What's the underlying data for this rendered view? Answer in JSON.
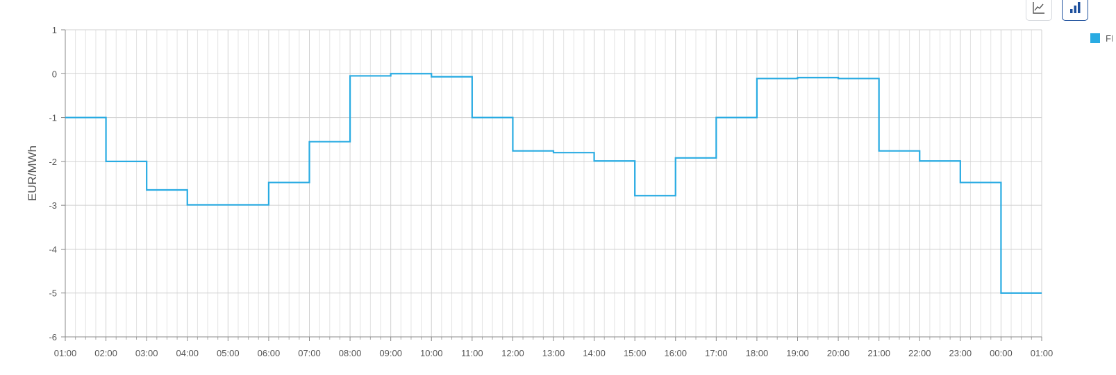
{
  "toolbar": {
    "line_icon": "line-chart-icon",
    "bar_icon": "bar-chart-icon",
    "active_color": "#1c4f9c"
  },
  "legend": {
    "label": "FI",
    "color": "#29abe2"
  },
  "chart_data": {
    "type": "line",
    "step": true,
    "ylabel": "EUR/MWh",
    "ylim": [
      -6,
      1
    ],
    "yticks": [
      "1",
      "0",
      "-1",
      "-2",
      "-3",
      "-4",
      "-5",
      "-6"
    ],
    "xticks": [
      "01:00",
      "02:00",
      "03:00",
      "04:00",
      "05:00",
      "06:00",
      "07:00",
      "08:00",
      "09:00",
      "10:00",
      "11:00",
      "12:00",
      "13:00",
      "14:00",
      "15:00",
      "16:00",
      "17:00",
      "18:00",
      "19:00",
      "20:00",
      "21:00",
      "22:00",
      "23:00",
      "00:00",
      "01:00"
    ],
    "grid": true,
    "legend_position": "top-right",
    "series": [
      {
        "name": "FI",
        "color": "#29abe2",
        "values": [
          -1.0,
          -2.0,
          -2.65,
          -2.99,
          -2.99,
          -2.48,
          -1.55,
          -0.05,
          0.0,
          -0.07,
          -1.0,
          -1.76,
          -1.8,
          -1.99,
          -2.78,
          -1.92,
          -1.0,
          -0.11,
          -0.09,
          -0.11,
          -1.76,
          -1.99,
          -2.48,
          -5.0
        ]
      }
    ]
  }
}
